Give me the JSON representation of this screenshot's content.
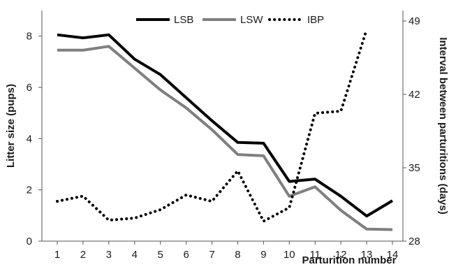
{
  "chart_data": {
    "type": "line",
    "xlabel": "Parturition number",
    "ylabel_left": "Litter size (pups)",
    "ylabel_right": "Interval between parturitions (days)",
    "x": [
      1,
      2,
      3,
      4,
      5,
      6,
      7,
      8,
      9,
      10,
      11,
      12,
      13,
      14
    ],
    "x_ticks": [
      "1",
      "2",
      "3",
      "4",
      "5",
      "6",
      "7",
      "8",
      "9",
      "10",
      "11",
      "12",
      "13",
      "14"
    ],
    "ylim_left": [
      0,
      9
    ],
    "yticks_left": [
      "0",
      "2",
      "4",
      "6",
      "8"
    ],
    "ylim_right": [
      28,
      50
    ],
    "yticks_right": [
      "28",
      "35",
      "42",
      "49"
    ],
    "grid": false,
    "legend_position": "top-center",
    "series": [
      {
        "name": "LSB",
        "axis": "left",
        "style": "solid",
        "color": "#000000",
        "values": [
          8.05,
          7.93,
          8.05,
          7.1,
          6.5,
          5.6,
          4.7,
          3.85,
          3.82,
          2.33,
          2.42,
          1.75,
          0.98,
          1.58
        ]
      },
      {
        "name": "LSW",
        "axis": "left",
        "style": "solid",
        "color": "#7f7f7f",
        "values": [
          7.45,
          7.45,
          7.6,
          6.75,
          5.9,
          5.2,
          4.35,
          3.38,
          3.33,
          1.75,
          2.12,
          1.2,
          0.47,
          0.45
        ]
      },
      {
        "name": "IBP",
        "axis": "right",
        "style": "dotted",
        "color": "#000000",
        "values": [
          31.8,
          32.3,
          30.0,
          30.2,
          31.0,
          32.4,
          31.8,
          34.7,
          29.9,
          31.2,
          40.2,
          40.4,
          48.2,
          null
        ]
      }
    ]
  }
}
